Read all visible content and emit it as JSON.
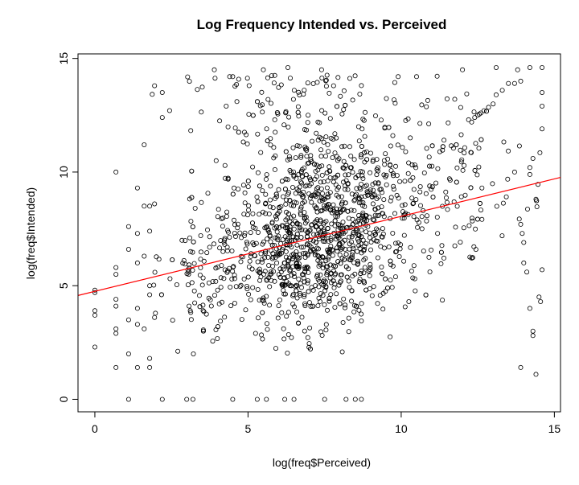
{
  "chart_data": {
    "type": "scatter",
    "title": "Log Frequency Intended vs.  Perceived",
    "xlabel": "log(freq$Perceived)",
    "ylabel": "log(freq$Intended)",
    "xlim": [
      -0.55,
      15.2
    ],
    "ylim": [
      -0.55,
      15.2
    ],
    "x_ticks": [
      0,
      5,
      10,
      15
    ],
    "y_ticks": [
      0,
      5,
      10,
      15
    ],
    "x_tick_labels": [
      "0",
      "5",
      "10",
      "15"
    ],
    "y_tick_labels": [
      "0",
      "5",
      "10",
      "15"
    ],
    "grid": false,
    "legend": "none",
    "marker": "open-circle",
    "point_color": "#000000",
    "regression_line": {
      "intercept": 4.75,
      "slope": 0.33,
      "color": "#ff0000"
    },
    "series": [
      {
        "points": [
          [
            0,
            4.8
          ],
          [
            0,
            4.7
          ],
          [
            0,
            3.9
          ],
          [
            0,
            3.7
          ],
          [
            0,
            2.3
          ],
          [
            0.69,
            10.0
          ],
          [
            0.69,
            5.8
          ],
          [
            0.69,
            5.5
          ],
          [
            0.69,
            4.4
          ],
          [
            0.69,
            4.1
          ],
          [
            0.69,
            3.1
          ],
          [
            0.69,
            2.9
          ],
          [
            0.69,
            1.4
          ],
          [
            1.1,
            0
          ],
          [
            1.1,
            7.6
          ],
          [
            1.1,
            6.6
          ],
          [
            1.1,
            3.5
          ],
          [
            1.1,
            2.0
          ],
          [
            1.39,
            9.3
          ],
          [
            1.39,
            7.3
          ],
          [
            1.39,
            6.0
          ],
          [
            1.39,
            4.0
          ],
          [
            1.39,
            3.3
          ],
          [
            1.39,
            1.4
          ],
          [
            1.61,
            11.2
          ],
          [
            1.61,
            8.5
          ],
          [
            1.61,
            6.3
          ],
          [
            1.61,
            3.1
          ],
          [
            1.79,
            8.5
          ],
          [
            1.79,
            7.4
          ],
          [
            1.79,
            5.0
          ],
          [
            1.79,
            4.6
          ],
          [
            1.79,
            1.8
          ],
          [
            1.79,
            1.4
          ],
          [
            1.95,
            13.8
          ],
          [
            1.95,
            8.6
          ],
          [
            1.95,
            3.6
          ],
          [
            2.2,
            13.5
          ],
          [
            2.2,
            12.4
          ],
          [
            2.2,
            0
          ],
          [
            3.0,
            0
          ],
          [
            3.2,
            0
          ],
          [
            4.5,
            0
          ],
          [
            5.3,
            0
          ],
          [
            5.6,
            0
          ],
          [
            6.2,
            0
          ],
          [
            6.5,
            0
          ],
          [
            7.5,
            0
          ],
          [
            8.2,
            0
          ],
          [
            8.5,
            0
          ],
          [
            8.7,
            0
          ],
          [
            3.9,
            14.5
          ],
          [
            4.4,
            14.2
          ],
          [
            4.5,
            14.2
          ],
          [
            5.5,
            14.5
          ],
          [
            6.3,
            14.6
          ],
          [
            7.4,
            14.5
          ],
          [
            9.9,
            14.2
          ],
          [
            10.5,
            14.2
          ],
          [
            12.0,
            14.5
          ],
          [
            13.1,
            14.6
          ],
          [
            13.8,
            14.5
          ],
          [
            14.2,
            14.6
          ],
          [
            14.6,
            14.6
          ],
          [
            12.4,
            12.4
          ],
          [
            12.55,
            12.55
          ],
          [
            12.7,
            12.7
          ],
          [
            12.85,
            12.85
          ],
          [
            13.0,
            13.0
          ],
          [
            13.1,
            13.4
          ],
          [
            13.3,
            13.6
          ],
          [
            13.5,
            13.9
          ],
          [
            13.7,
            13.9
          ],
          [
            13.9,
            14.0
          ],
          [
            12.2,
            12.3
          ],
          [
            12.3,
            12.2
          ],
          [
            12.5,
            12.5
          ],
          [
            12.6,
            12.6
          ],
          [
            13.9,
            7.7
          ],
          [
            13.95,
            7.3
          ],
          [
            14.0,
            6.9
          ],
          [
            14.0,
            6.0
          ],
          [
            14.1,
            5.6
          ],
          [
            14.2,
            4.0
          ],
          [
            14.3,
            3.0
          ],
          [
            14.3,
            2.8
          ],
          [
            14.4,
            1.1
          ],
          [
            14.5,
            4.5
          ],
          [
            14.55,
            4.3
          ],
          [
            14.6,
            5.7
          ],
          [
            14.6,
            11.9
          ],
          [
            14.6,
            12.9
          ],
          [
            14.6,
            13.5
          ],
          [
            14.4,
            8.8
          ],
          [
            14.2,
            10.2
          ],
          [
            14.3,
            10.6
          ],
          [
            13.9,
            1.4
          ]
        ]
      }
    ]
  }
}
